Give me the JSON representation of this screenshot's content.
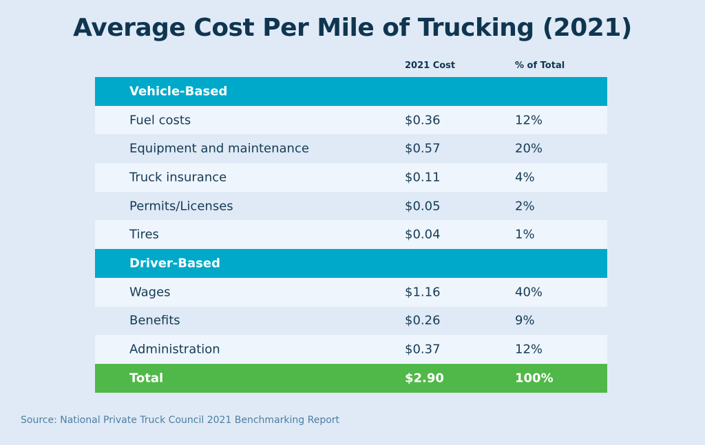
{
  "title": "Average Cost Per Mile of Trucking (2021)",
  "colors": {
    "section": "#00a9c9",
    "total": "#50b848",
    "text": "#0f3550"
  },
  "chart_data": {
    "type": "table",
    "title": "Average Cost Per Mile of Trucking (2021)",
    "columns": [
      "",
      "2021 Cost",
      "% of Total"
    ],
    "rows": [
      {
        "kind": "section",
        "cells": [
          "Vehicle-Based",
          "",
          ""
        ]
      },
      {
        "kind": "data",
        "cells": [
          "Fuel costs",
          "$0.36",
          "12%"
        ]
      },
      {
        "kind": "data",
        "cells": [
          "Equipment and maintenance",
          "$0.57",
          "20%"
        ]
      },
      {
        "kind": "data",
        "cells": [
          "Truck insurance",
          "$0.11",
          "4%"
        ]
      },
      {
        "kind": "data",
        "cells": [
          "Permits/Licenses",
          "$0.05",
          "2%"
        ]
      },
      {
        "kind": "data",
        "cells": [
          "Tires",
          "$0.04",
          "1%"
        ]
      },
      {
        "kind": "section",
        "cells": [
          "Driver-Based",
          "",
          ""
        ]
      },
      {
        "kind": "data",
        "cells": [
          "Wages",
          "$1.16",
          "40%"
        ]
      },
      {
        "kind": "data",
        "cells": [
          "Benefits",
          "$0.26",
          "9%"
        ]
      },
      {
        "kind": "data",
        "cells": [
          "Administration",
          "$0.37",
          "12%"
        ]
      },
      {
        "kind": "total",
        "cells": [
          "Total",
          "$2.90",
          "100%"
        ]
      }
    ]
  },
  "source": "Source: National Private Truck Council 2021 Benchmarking Report"
}
